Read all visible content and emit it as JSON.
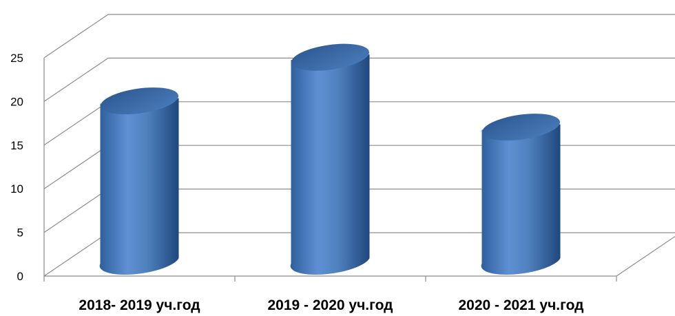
{
  "chart_data": {
    "type": "bar",
    "style": "3d-cylinder",
    "title": "",
    "xlabel": "",
    "ylabel": "",
    "categories": [
      "2018- 2019 уч.год",
      "2019 - 2020 уч.год",
      "2020 - 2021 уч.год"
    ],
    "values": [
      19,
      24,
      16
    ],
    "ylim": [
      0,
      25
    ],
    "yticks": [
      0,
      5,
      10,
      15,
      20,
      25
    ],
    "yticks_labels": [
      "0",
      "5",
      "10",
      "15",
      "20",
      "25"
    ],
    "grid": true,
    "legend": "none",
    "colors": {
      "bar_main": "#4f81bd",
      "bar_light": "#7ea6dc",
      "bar_dark": "#1f477e",
      "top": "#3a6aa6",
      "grid": "#8c8c8c"
    }
  }
}
